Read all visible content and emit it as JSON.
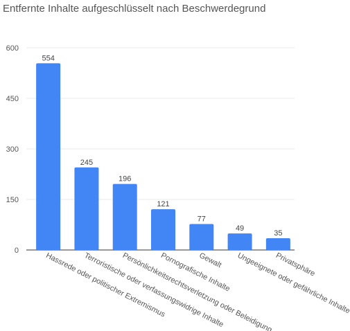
{
  "chart_data": {
    "type": "bar",
    "title": "Entfernte Inhalte aufgeschlüsselt nach Beschwerdegrund",
    "xlabel": "",
    "ylabel": "",
    "categories": [
      "Hassrede oder politischer Extremismus",
      "Terroristische oder verfassungswidrige Inhalte",
      "Persönlichkeitsrechtsverletzung oder Beleidigung",
      "Pornografische Inhalte",
      "Gewalt",
      "Ungeeignete oder gefährliche Inhalte",
      "Privatsphäre"
    ],
    "values": [
      554,
      245,
      196,
      121,
      77,
      49,
      35
    ],
    "ylim": [
      0,
      600
    ],
    "yticks": [
      0,
      150,
      300,
      450,
      600
    ],
    "grid": true,
    "legend": "none",
    "colors": {
      "bar": "#4285f4",
      "grid": "#e8e8e8",
      "axis": "#333333",
      "text": "#555555"
    }
  }
}
